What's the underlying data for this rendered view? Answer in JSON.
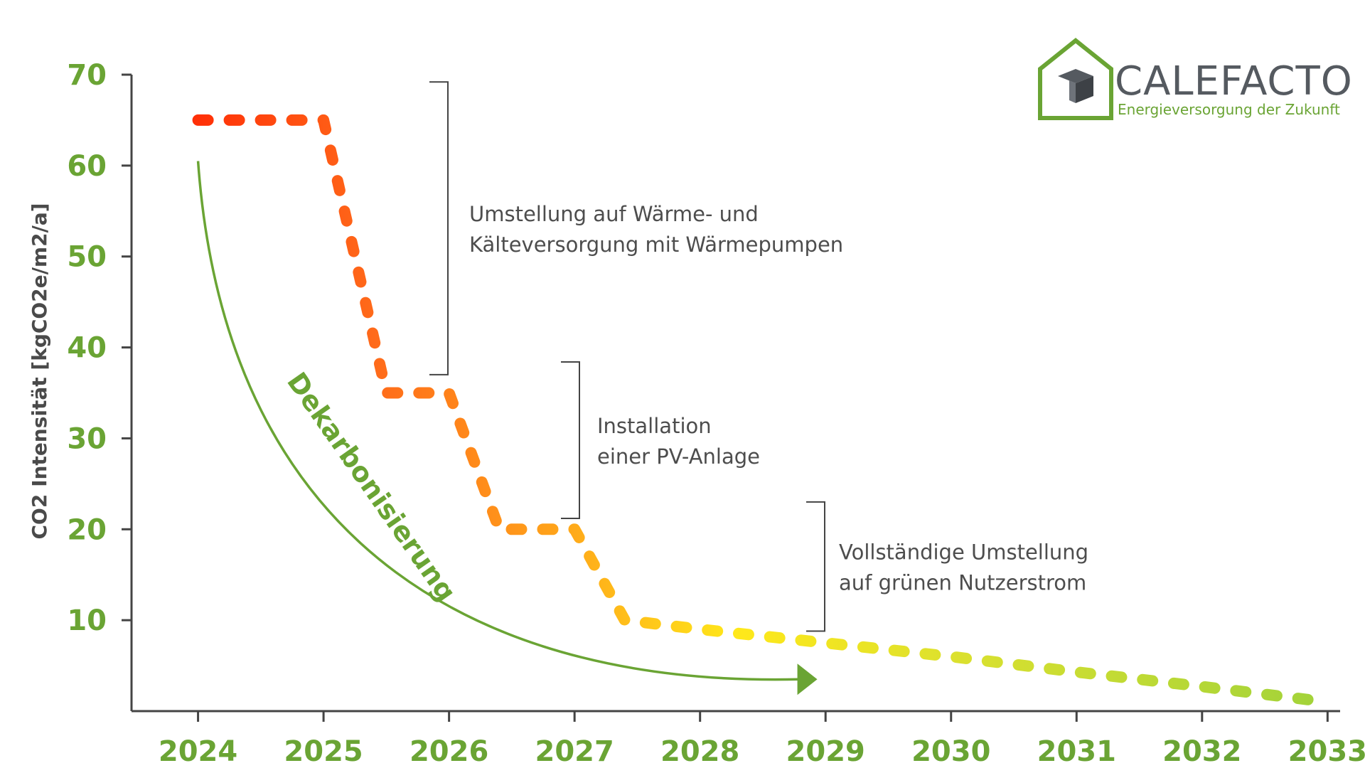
{
  "colors": {
    "axis": "#444444",
    "tick_text": "#6aa434",
    "arrow": "#6aa434",
    "bracket": "#444444",
    "gradient": [
      "#ff1a00",
      "#ff6a1a",
      "#ffa31a",
      "#ffe81a",
      "#d8e030",
      "#9fd23a"
    ]
  },
  "logo": {
    "name": "CALEFACTO",
    "tagline": "Energieversorgung der Zukunft",
    "icon": "house-cube-icon"
  },
  "annotations": [
    {
      "lines": [
        "Umstellung auf Wärme- und",
        "Kälteversorgung mit Wärmepumpen"
      ],
      "y_range": [
        37,
        69.2
      ]
    },
    {
      "lines": [
        "Installation",
        "einer PV-Anlage"
      ],
      "y_range": [
        21.2,
        38.4
      ]
    },
    {
      "lines": [
        "Vollständige Umstellung",
        "auf grünen Nutzerstrom"
      ],
      "y_range": [
        8.8,
        23
      ]
    }
  ],
  "arrow": {
    "label": "Dekarbonisierung",
    "from": [
      2024,
      60.5
    ],
    "to": [
      2028.9,
      3.5
    ]
  },
  "chart_data": {
    "type": "line",
    "title": "",
    "xlabel": "",
    "ylabel": "CO2 Intensität [kgCO2e/m2/a]",
    "xlim": [
      2023.47,
      2033.1
    ],
    "ylim": [
      0,
      70
    ],
    "x_ticks": [
      "2024",
      "2025",
      "2026",
      "2027",
      "2028",
      "2029",
      "2030",
      "2031",
      "2032",
      "2033"
    ],
    "y_ticks": [
      "10",
      "20",
      "30",
      "40",
      "50",
      "60",
      "70"
    ],
    "grid": false,
    "line_style": "dashed",
    "series": [
      {
        "x": [
          2024,
          2025,
          2025.5,
          2026,
          2026.4,
          2027,
          2027.4,
          2028,
          2029,
          2030,
          2031,
          2032,
          2033
        ],
        "y": [
          65,
          65,
          35,
          35,
          20,
          20,
          10,
          9,
          7.5,
          6,
          4.3,
          2.7,
          1
        ]
      }
    ]
  }
}
